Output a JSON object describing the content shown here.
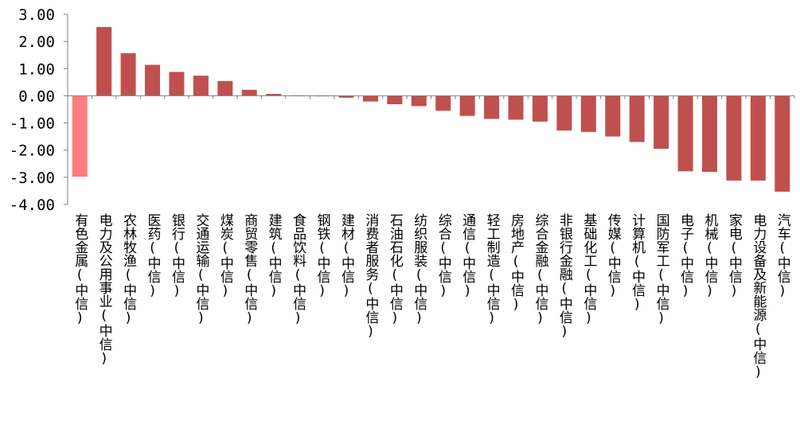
{
  "chart_data": {
    "type": "bar",
    "title": "",
    "xlabel": "",
    "ylabel": "",
    "ylim": [
      -4,
      3
    ],
    "yticks": [
      "3.00",
      "2.00",
      "1.00",
      "0.00",
      "-1.00",
      "-2.00",
      "-3.00",
      "-4.00"
    ],
    "ytick_values": [
      3,
      2,
      1,
      0,
      -1,
      -2,
      -3,
      -4
    ],
    "grid": false,
    "legend": "none",
    "colors": {
      "bar": "#C0504D",
      "highlight": "#FF7C80",
      "axis": "#7f7f7f"
    },
    "highlight_index": 0,
    "categories": [
      "有色金属(中信)",
      "电力及公用事业(中信)",
      "农林牧渔(中信)",
      "医药(中信)",
      "银行(中信)",
      "交通运输(中信)",
      "煤炭(中信)",
      "商贸零售(中信)",
      "建筑(中信)",
      "食品饮料(中信)",
      "钢铁(中信)",
      "建材(中信)",
      "消费者服务(中信)",
      "石油石化(中信)",
      "纺织服装(中信)",
      "综合(中信)",
      "通信(中信)",
      "轻工制造(中信)",
      "房地产(中信)",
      "综合金融(中信)",
      "非银行金融(中信)",
      "基础化工(中信)",
      "传媒(中信)",
      "计算机(中信)",
      "国防军工(中信)",
      "电子(中信)",
      "机械(中信)",
      "家电(中信)",
      "电力设备及新能源(中信)",
      "汽车(中信)"
    ],
    "values": [
      -2.98,
      2.53,
      1.57,
      1.14,
      0.88,
      0.74,
      0.54,
      0.22,
      0.07,
      0.0,
      -0.02,
      -0.07,
      -0.21,
      -0.31,
      -0.38,
      -0.55,
      -0.74,
      -0.85,
      -0.88,
      -0.95,
      -1.28,
      -1.33,
      -1.5,
      -1.7,
      -1.95,
      -2.78,
      -2.8,
      -3.12,
      -3.12,
      -3.53
    ]
  }
}
